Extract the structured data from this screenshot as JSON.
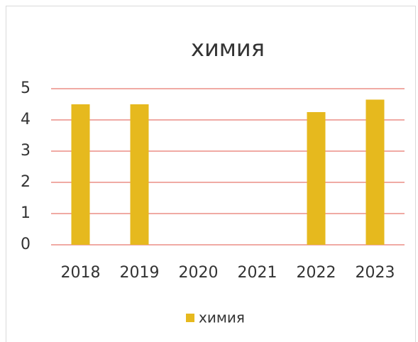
{
  "chart_data": {
    "type": "bar",
    "title": "химия",
    "categories": [
      "2018",
      "2019",
      "2020",
      "2021",
      "2022",
      "2023"
    ],
    "series": [
      {
        "name": "химия",
        "color": "#e6b91e",
        "values": [
          4.5,
          4.5,
          null,
          null,
          4.25,
          4.65
        ]
      }
    ],
    "ylim": [
      0,
      5
    ],
    "yticks": [
      0,
      1,
      2,
      3,
      4,
      5
    ],
    "grid": true,
    "grid_color": "#e8786e",
    "legend": "bottom"
  }
}
